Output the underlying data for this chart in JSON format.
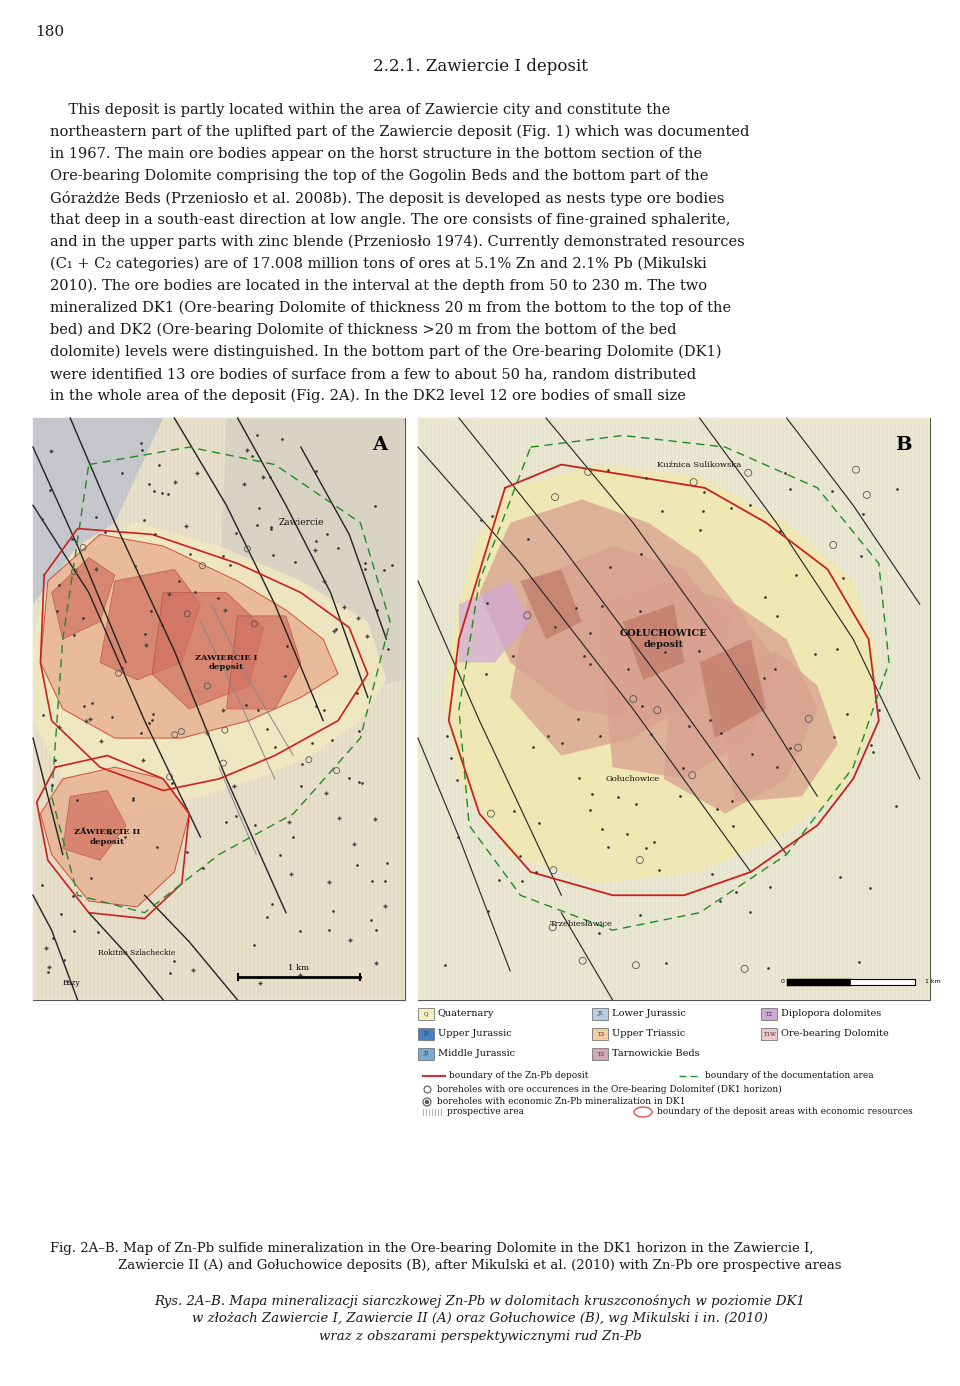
{
  "page_number": "180",
  "title": "2.2.1. Zawiercie I deposit",
  "body_lines": [
    "    This deposit is partly located within the area of Zawiercie city and constitute the",
    "northeastern part of the uplifted part of the Zawiercie deposit (Fig. 1) which was documented",
    "in 1967. The main ore bodies appear on the horst structure in the bottom section of the",
    "Ore-bearing Dolomite comprising the top of the Gogolin Beds and the bottom part of the",
    "Górażdże Beds (Przeniosło et al. 2008b). The deposit is developed as nests type ore bodies",
    "that deep in a south-east direction at low angle. The ore consists of fine-grained sphalerite,",
    "and in the upper parts with zinc blende (Przeniosło 1974). Currently demonstrated resources",
    "(C₁ + C₂ categories) are of 17.008 million tons of ores at 5.1% Zn and 2.1% Pb (Mikulski",
    "2010). The ore bodies are located in the interval at the depth from 50 to 230 m. The two",
    "mineralized DK1 (Ore-bearing Dolomite of thickness 20 m from the bottom to the top of the",
    "bed) and DK2 (Ore-bearing Dolomite of thickness >20 m from the bottom of the bed",
    "dolomite) levels were distinguished. In the bottom part of the Ore-bearing Dolomite (DK1)",
    "were identified 13 ore bodies of surface from a few to about 50 ha, random distributed",
    "in the whole area of the deposit (Fig. 2A). In the DK2 level 12 ore bodies of small size"
  ],
  "caption_en_1": "Fig. 2A–B. Map of Zn-Pb sulfide mineralization in the Ore-bearing Dolomite in the DK1 horizon in the Zawiercie I,",
  "caption_en_2": "Zawiercie II (A) and Gołuchowice deposits (B), after Mikulski et al. (2010) with Zn-Pb ore prospective areas",
  "caption_pl_1": "Rys. 2A–B. Mapa mineralizacji siarczkowej Zn-Pb w dolomitach kruszconośnych w poziomie DK1",
  "caption_pl_2": "w złożach Zawiercie I, Zawiercie II (A) oraz Gołuchowice (B), wg Mikulski i in. (2010)",
  "caption_pl_3": "wraz z obszarami perspektywicznymi rud Zn-Pb",
  "legend_items": [
    [
      "Quaternary",
      "#f5f0c8",
      "Q"
    ],
    [
      "Upper Jurassic",
      "#4a80c0",
      "J3"
    ],
    [
      "Middle Jurassic",
      "#7baad0",
      "J2"
    ],
    [
      "Lower Jurassic",
      "#b8cce0",
      "J1"
    ],
    [
      "Upper Triassic",
      "#f5cba0",
      "T3"
    ],
    [
      "Tarnowickie Beds",
      "#c8a0b8",
      "T3"
    ],
    [
      "Diplopora dolomites",
      "#d8b0d8",
      "T2"
    ],
    [
      "Ore-bearing Dolomite",
      "#f0c8c8",
      "T1W"
    ]
  ],
  "bg_color": "#ffffff",
  "text_color": "#1a1a1a",
  "map_bg_left": "#e8e0d0",
  "map_bg_right": "#e8e8d8"
}
